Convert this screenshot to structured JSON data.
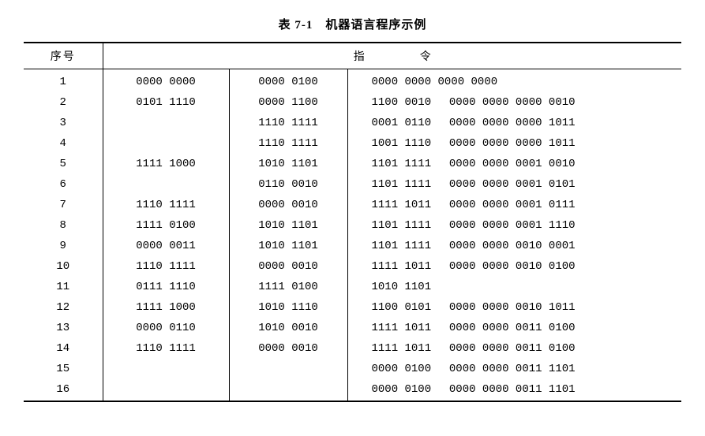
{
  "title": "表 7-1　机器语言程序示例",
  "columns": {
    "seq": "序号",
    "instruction": "指　令"
  },
  "rows": [
    {
      "seq": "1",
      "c1": "0000 0000",
      "c2": "0000 0100",
      "c3": "0000 0000 0000 0000",
      "c4": ""
    },
    {
      "seq": "2",
      "c1": "0101 1110",
      "c2": "0000 1100",
      "c3": "1100 0010",
      "c4": "0000 0000 0000 0010"
    },
    {
      "seq": "3",
      "c1": "",
      "c2": "1110 1111",
      "c3": "0001 0110",
      "c4": "0000 0000 0000 1011"
    },
    {
      "seq": "4",
      "c1": "",
      "c2": "1110 1111",
      "c3": "1001 1110",
      "c4": "0000 0000 0000 1011"
    },
    {
      "seq": "5",
      "c1": "1111 1000",
      "c2": "1010 1101",
      "c3": "1101 1111",
      "c4": "0000 0000 0001 0010"
    },
    {
      "seq": "6",
      "c1": "",
      "c2": "0110 0010",
      "c3": "1101 1111",
      "c4": "0000 0000 0001 0101"
    },
    {
      "seq": "7",
      "c1": "1110 1111",
      "c2": "0000 0010",
      "c3": "1111 1011",
      "c4": "0000 0000 0001 0111"
    },
    {
      "seq": "8",
      "c1": "1111 0100",
      "c2": "1010 1101",
      "c3": "1101 1111",
      "c4": "0000 0000 0001 1110"
    },
    {
      "seq": "9",
      "c1": "0000 0011",
      "c2": "1010 1101",
      "c3": "1101 1111",
      "c4": "0000 0000 0010 0001"
    },
    {
      "seq": "10",
      "c1": "1110 1111",
      "c2": "0000 0010",
      "c3": "1111 1011",
      "c4": "0000 0000 0010 0100"
    },
    {
      "seq": "11",
      "c1": "0111 1110",
      "c2": "1111 0100",
      "c3": "1010 1101",
      "c4": ""
    },
    {
      "seq": "12",
      "c1": "1111 1000",
      "c2": "1010 1110",
      "c3": "1100 0101",
      "c4": "0000 0000 0010 1011"
    },
    {
      "seq": "13",
      "c1": "0000 0110",
      "c2": "1010 0010",
      "c3": "1111 1011",
      "c4": "0000 0000 0011 0100"
    },
    {
      "seq": "14",
      "c1": "1110 1111",
      "c2": "0000 0010",
      "c3": "1111 1011",
      "c4": "0000 0000 0011 0100"
    },
    {
      "seq": "15",
      "c1": "",
      "c2": "",
      "c3": "0000 0100",
      "c4": "0000 0000 0011 1101"
    },
    {
      "seq": "16",
      "c1": "",
      "c2": "",
      "c3": "0000 0100",
      "c4": "0000 0000 0011 1101"
    }
  ]
}
